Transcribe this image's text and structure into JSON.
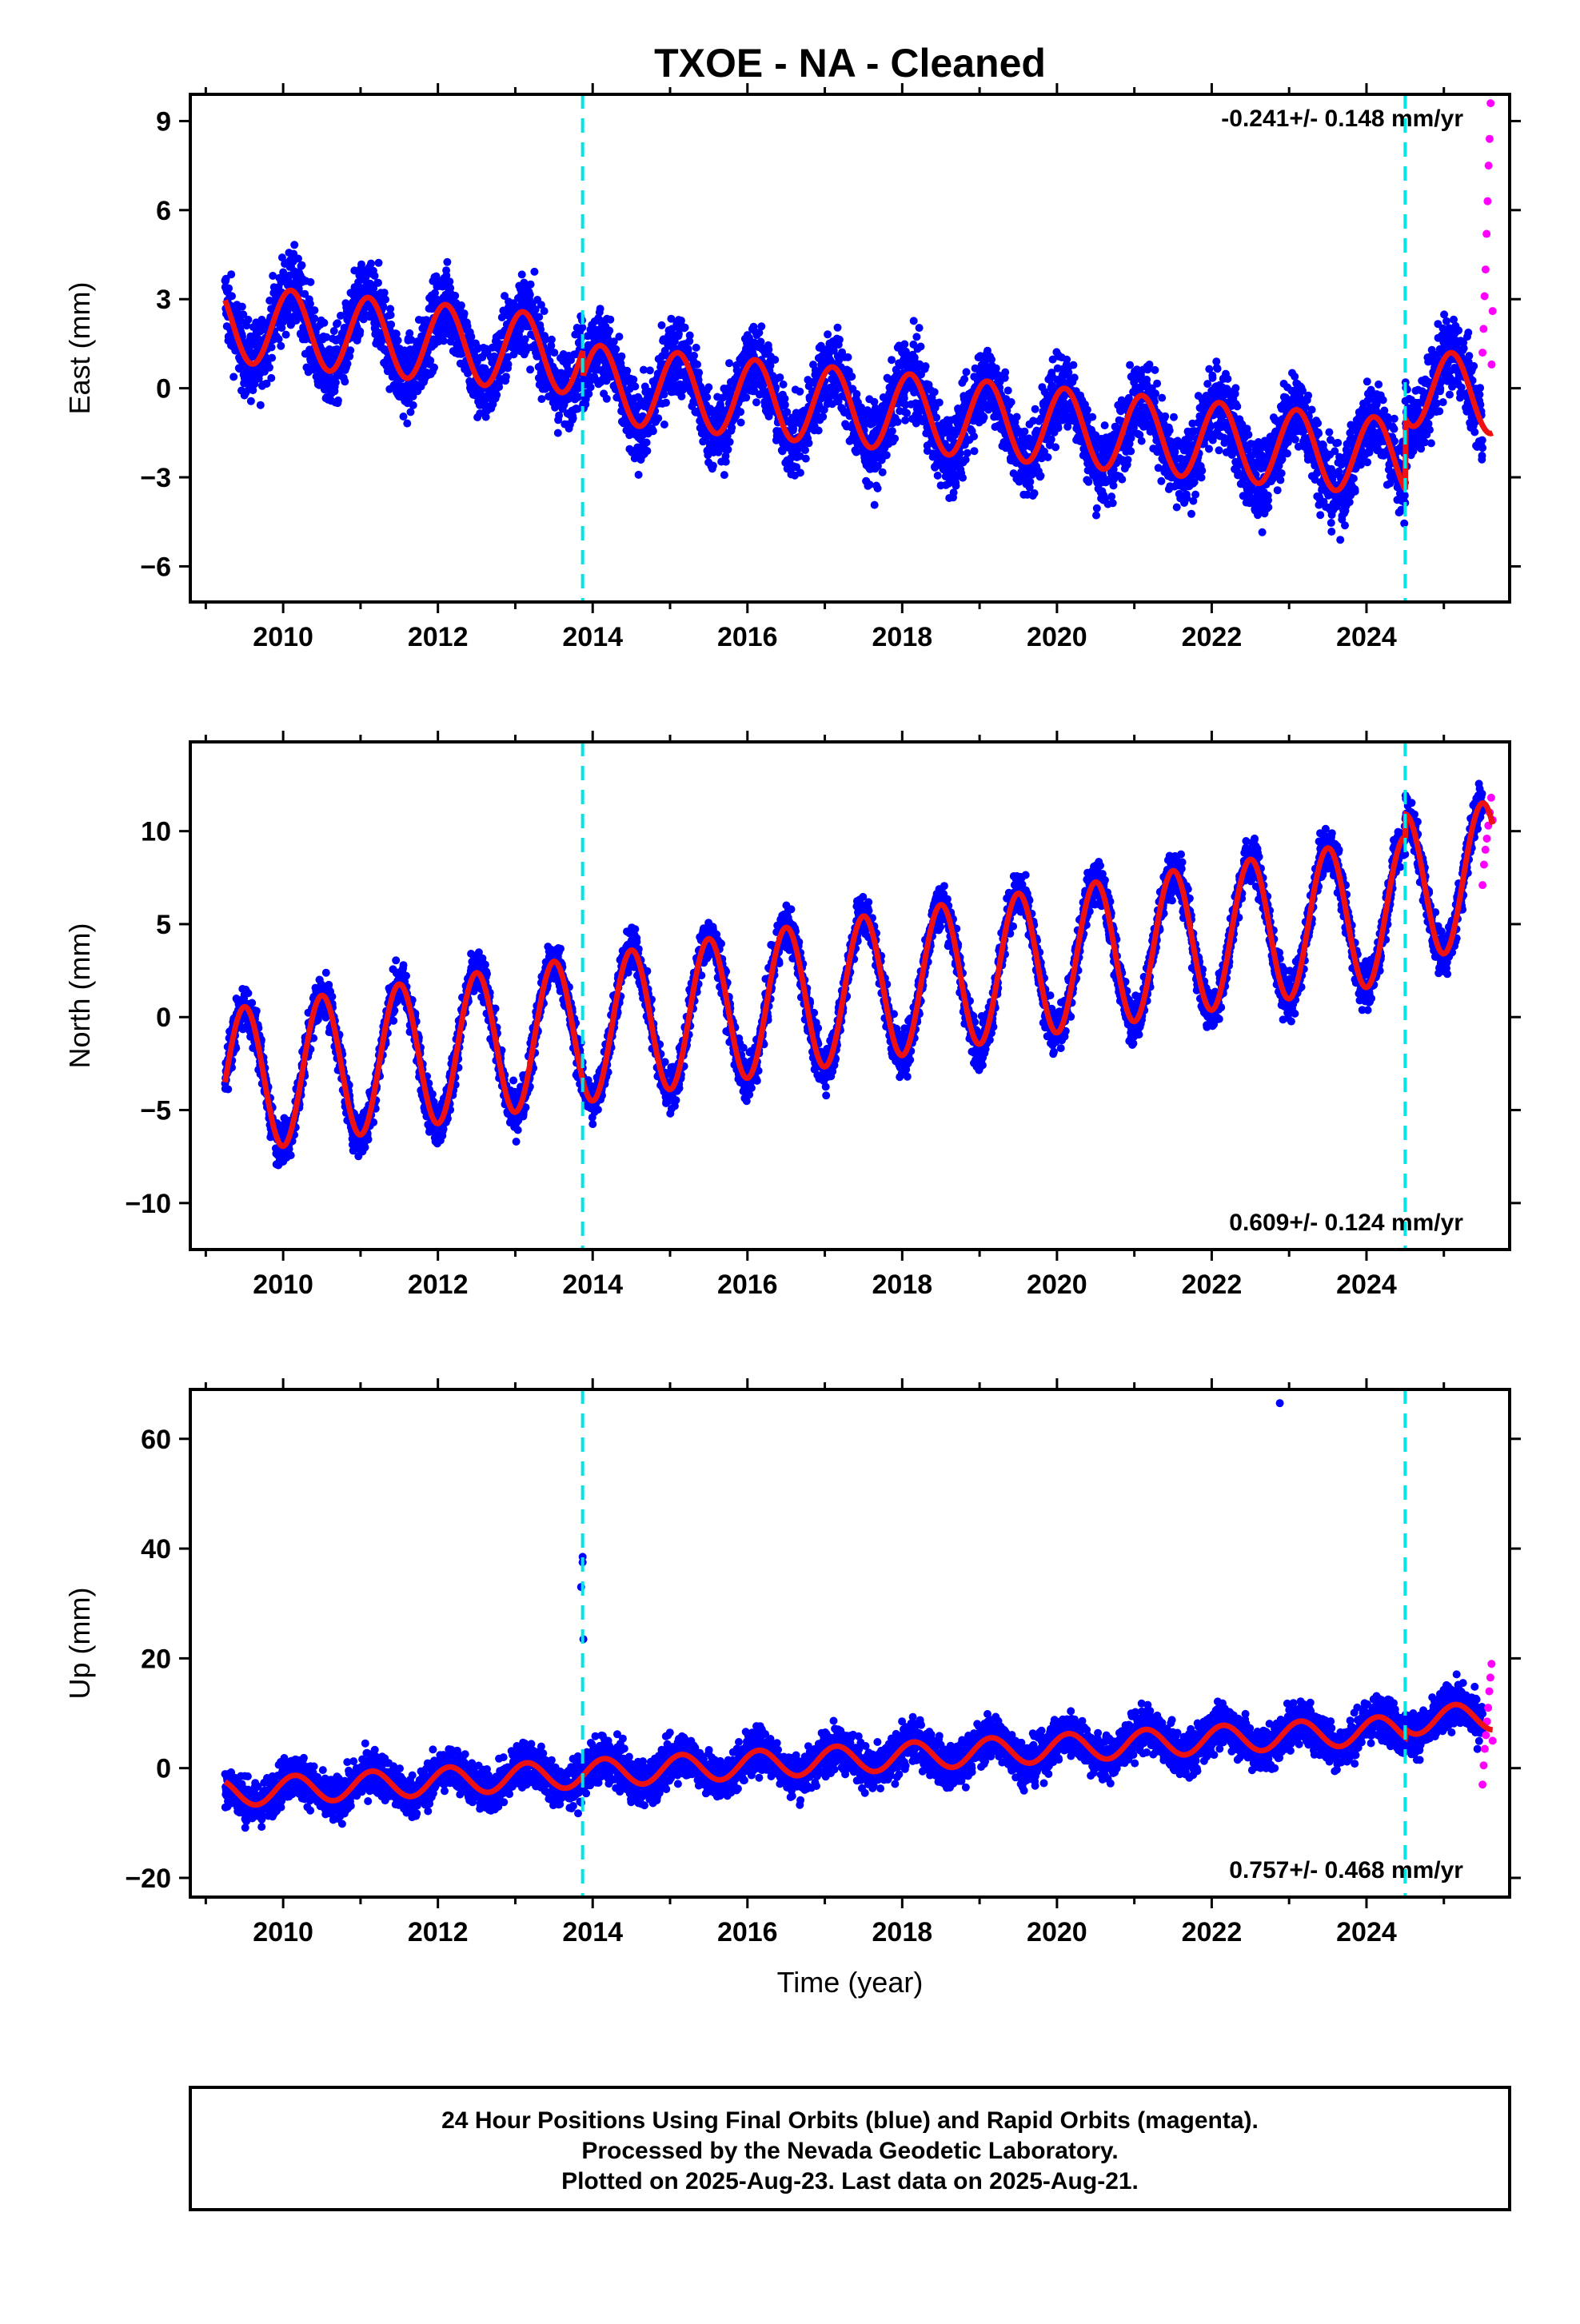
{
  "title": "TXOE  - NA - Cleaned",
  "colors": {
    "final_orbits": "#0000ff",
    "rapid_orbits": "#ff00ff",
    "model": "#ee1111",
    "event_lines": "#00e5e5"
  },
  "event_lines_year": [
    2013.87,
    2024.5
  ],
  "x_axis": {
    "label": "Time (year)",
    "range": [
      2008.8,
      2025.85
    ],
    "ticks": [
      2010,
      2012,
      2014,
      2016,
      2018,
      2020,
      2022,
      2024
    ],
    "tick_labels": [
      "2010",
      "2012",
      "2014",
      "2016",
      "2018",
      "2020",
      "2022",
      "2024"
    ]
  },
  "footer": {
    "line1": "24 Hour Positions Using Final Orbits (blue) and Rapid Orbits (magenta).",
    "line2": "Processed by the Nevada Geodetic Laboratory.",
    "line3": "Plotted on 2025-Aug-23. Last data on 2025-Aug-21."
  },
  "chart_data": [
    {
      "type": "scatter",
      "component": "East",
      "ylabel": "East (mm)",
      "xlabel": "",
      "rate_text": "-0.241+/- 0.148 mm/yr",
      "rate_position": "top-right",
      "ylim": [
        -7.2,
        9.9
      ],
      "yticks": [
        -6,
        -3,
        0,
        3,
        6,
        9
      ],
      "ytick_labels": [
        "−6",
        "−3",
        "0",
        "3",
        "6",
        "9"
      ],
      "series": [
        {
          "role": "final",
          "start": 2009.25,
          "end": 2025.5,
          "offset": 2.2,
          "trend": -0.24,
          "amplitude": 1.3,
          "phase": 0.85,
          "noise": 1.1
        },
        {
          "role": "rapid",
          "start": 2025.5,
          "end": 2025.63,
          "values": [
            1.2,
            2.0,
            3.1,
            4.0,
            5.2,
            6.3,
            7.5,
            8.4,
            9.6,
            0.8,
            2.6
          ]
        }
      ],
      "model": {
        "start": 2009.25,
        "end": 2025.63,
        "offset": 2.2,
        "trend": -0.24,
        "amplitude": 1.3,
        "phase": 0.85,
        "jumps": [
          {
            "year": 2013.87,
            "dy": -0.9
          },
          {
            "year": 2024.5,
            "dy": 2.4
          }
        ]
      }
    },
    {
      "type": "scatter",
      "component": "North",
      "ylabel": "North (mm)",
      "xlabel": "",
      "rate_text": "0.609+/- 0.124 mm/yr",
      "rate_position": "bottom-right",
      "ylim": [
        -12.5,
        14.8
      ],
      "yticks": [
        -10,
        -5,
        0,
        5,
        10
      ],
      "ytick_labels": [
        "−10",
        "−5",
        "0",
        "5",
        "10"
      ],
      "series": [
        {
          "role": "final",
          "start": 2009.25,
          "end": 2025.5,
          "offset": -3.5,
          "trend": 0.61,
          "amplitude": 3.9,
          "phase": 0.25,
          "noise": 1.0
        },
        {
          "role": "rapid",
          "start": 2025.5,
          "end": 2025.63,
          "values": [
            7.1,
            8.2,
            9.0,
            9.6,
            10.3,
            11.0,
            11.8,
            10.6
          ]
        }
      ],
      "model": {
        "start": 2009.25,
        "end": 2025.63,
        "offset": -3.5,
        "trend": 0.61,
        "amplitude": 3.9,
        "phase": 0.25,
        "jumps": [
          {
            "year": 2024.5,
            "dy": 1.2
          }
        ]
      }
    },
    {
      "type": "scatter",
      "component": "Up",
      "ylabel": "Up (mm)",
      "xlabel": "Time (year)",
      "rate_text": "0.757+/- 0.468 mm/yr",
      "rate_position": "bottom-right",
      "ylim": [
        -23.5,
        69
      ],
      "yticks": [
        -20,
        0,
        20,
        40,
        60
      ],
      "ytick_labels": [
        "−20",
        "0",
        "20",
        "40",
        "60"
      ],
      "series": [
        {
          "role": "final",
          "start": 2009.25,
          "end": 2025.5,
          "offset": -4.5,
          "trend": 0.76,
          "amplitude": 2.5,
          "phase": 0.9,
          "noise": 3.3
        },
        {
          "role": "rapid",
          "start": 2025.5,
          "end": 2025.63,
          "values": [
            -3.0,
            0.5,
            3.5,
            6.0,
            8.5,
            11.0,
            14.0,
            16.5,
            19.0,
            5.0
          ]
        }
      ],
      "outliers": [
        [
          2013.87,
          38.5
        ],
        [
          2013.87,
          37.5
        ],
        [
          2013.85,
          33.0
        ],
        [
          2013.88,
          23.5
        ],
        [
          2022.88,
          66.5
        ]
      ],
      "model": {
        "start": 2009.25,
        "end": 2025.63,
        "offset": -4.5,
        "trend": 0.76,
        "amplitude": 2.5,
        "phase": 0.9,
        "jumps": [
          {
            "year": 2024.5,
            "dy": 1.5
          }
        ]
      }
    }
  ]
}
